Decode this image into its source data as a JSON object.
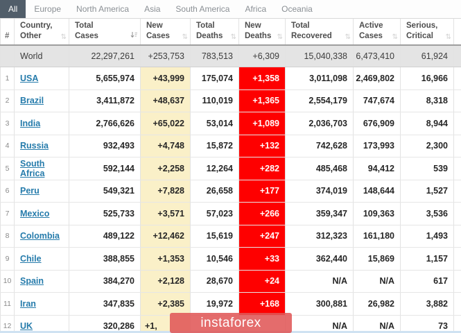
{
  "tabs": {
    "items": [
      {
        "id": "all",
        "label": "All",
        "active": true
      },
      {
        "id": "europe",
        "label": "Europe",
        "active": false
      },
      {
        "id": "north-america",
        "label": "North America",
        "active": false
      },
      {
        "id": "asia",
        "label": "Asia",
        "active": false
      },
      {
        "id": "south-america",
        "label": "South America",
        "active": false
      },
      {
        "id": "africa",
        "label": "Africa",
        "active": false
      },
      {
        "id": "oceania",
        "label": "Oceania",
        "active": false
      }
    ]
  },
  "table": {
    "headers": [
      {
        "id": "rank",
        "line1": "#",
        "line2": "",
        "sort": "none"
      },
      {
        "id": "country",
        "line1": "Country,",
        "line2": "Other",
        "sort": "inactive"
      },
      {
        "id": "total_cases",
        "line1": "Total",
        "line2": "Cases",
        "sort": "desc"
      },
      {
        "id": "new_cases",
        "line1": "New",
        "line2": "Cases",
        "sort": "inactive"
      },
      {
        "id": "total_deaths",
        "line1": "Total",
        "line2": "Deaths",
        "sort": "inactive"
      },
      {
        "id": "new_deaths",
        "line1": "New",
        "line2": "Deaths",
        "sort": "inactive"
      },
      {
        "id": "total_recovered",
        "line1": "Total",
        "line2": "Recovered",
        "sort": "inactive"
      },
      {
        "id": "active_cases",
        "line1": "Active",
        "line2": "Cases",
        "sort": "inactive"
      },
      {
        "id": "serious_critical",
        "line1": "Serious,",
        "line2": "Critical",
        "sort": "inactive"
      }
    ],
    "world_row": {
      "rank": "",
      "country": "World",
      "total_cases": "22,297,261",
      "new_cases": "+253,753",
      "total_deaths": "783,513",
      "new_deaths": "+6,309",
      "total_recovered": "15,040,338",
      "active_cases": "6,473,410",
      "serious_critical": "61,924"
    },
    "rows": [
      {
        "rank": "1",
        "country": "USA",
        "total_cases": "5,655,974",
        "new_cases": "+43,999",
        "total_deaths": "175,074",
        "new_deaths": "+1,358",
        "total_recovered": "3,011,098",
        "active_cases": "2,469,802",
        "serious_critical": "16,966"
      },
      {
        "rank": "2",
        "country": "Brazil",
        "total_cases": "3,411,872",
        "new_cases": "+48,637",
        "total_deaths": "110,019",
        "new_deaths": "+1,365",
        "total_recovered": "2,554,179",
        "active_cases": "747,674",
        "serious_critical": "8,318"
      },
      {
        "rank": "3",
        "country": "India",
        "total_cases": "2,766,626",
        "new_cases": "+65,022",
        "total_deaths": "53,014",
        "new_deaths": "+1,089",
        "total_recovered": "2,036,703",
        "active_cases": "676,909",
        "serious_critical": "8,944"
      },
      {
        "rank": "4",
        "country": "Russia",
        "total_cases": "932,493",
        "new_cases": "+4,748",
        "total_deaths": "15,872",
        "new_deaths": "+132",
        "total_recovered": "742,628",
        "active_cases": "173,993",
        "serious_critical": "2,300"
      },
      {
        "rank": "5",
        "country": "South Africa",
        "total_cases": "592,144",
        "new_cases": "+2,258",
        "total_deaths": "12,264",
        "new_deaths": "+282",
        "total_recovered": "485,468",
        "active_cases": "94,412",
        "serious_critical": "539"
      },
      {
        "rank": "6",
        "country": "Peru",
        "total_cases": "549,321",
        "new_cases": "+7,828",
        "total_deaths": "26,658",
        "new_deaths": "+177",
        "total_recovered": "374,019",
        "active_cases": "148,644",
        "serious_critical": "1,527"
      },
      {
        "rank": "7",
        "country": "Mexico",
        "total_cases": "525,733",
        "new_cases": "+3,571",
        "total_deaths": "57,023",
        "new_deaths": "+266",
        "total_recovered": "359,347",
        "active_cases": "109,363",
        "serious_critical": "3,536"
      },
      {
        "rank": "8",
        "country": "Colombia",
        "total_cases": "489,122",
        "new_cases": "+12,462",
        "total_deaths": "15,619",
        "new_deaths": "+247",
        "total_recovered": "312,323",
        "active_cases": "161,180",
        "serious_critical": "1,493"
      },
      {
        "rank": "9",
        "country": "Chile",
        "total_cases": "388,855",
        "new_cases": "+1,353",
        "total_deaths": "10,546",
        "new_deaths": "+33",
        "total_recovered": "362,440",
        "active_cases": "15,869",
        "serious_critical": "1,157"
      },
      {
        "rank": "10",
        "country": "Spain",
        "total_cases": "384,270",
        "new_cases": "+2,128",
        "total_deaths": "28,670",
        "new_deaths": "+24",
        "total_recovered": "N/A",
        "active_cases": "N/A",
        "serious_critical": "617"
      },
      {
        "rank": "11",
        "country": "Iran",
        "total_cases": "347,835",
        "new_cases": "+2,385",
        "total_deaths": "19,972",
        "new_deaths": "+168",
        "total_recovered": "300,881",
        "active_cases": "26,982",
        "serious_critical": "3,882"
      },
      {
        "rank": "12",
        "country": "UK",
        "total_cases": "320,286",
        "new_cases": "+1,",
        "new_cases_partial": true,
        "total_deaths": "",
        "new_deaths": "",
        "total_recovered": "N/A",
        "active_cases": "N/A",
        "serious_critical": "73"
      }
    ]
  },
  "watermark": {
    "label": "instaforex"
  },
  "colors": {
    "accent_link": "#257bab",
    "new_cases_bg": "#faf0c8",
    "new_deaths_bg": "#fe0000",
    "active_tab_bg": "#515e6a",
    "world_row_bg": "#e4e4e4",
    "watermark_bg": "rgba(224,86,86,0.87)"
  }
}
